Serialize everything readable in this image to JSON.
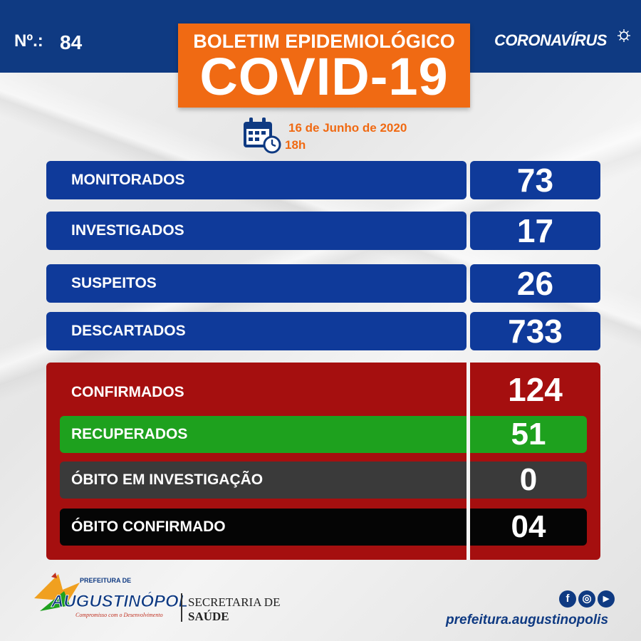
{
  "header": {
    "number_label": "Nº.:",
    "number_value": "84",
    "title_line1": "BOLETIM EPIDEMIOLÓGICO",
    "title_line2": "COVID-19",
    "brand": "CORONAVÍRUS",
    "date": "16 de Junho de 2020",
    "time": "18h"
  },
  "stats_blue": [
    {
      "label": "MONITORADOS",
      "value": "73"
    },
    {
      "label": "INVESTIGADOS",
      "value": "17"
    },
    {
      "label": "SUSPEITOS",
      "value": "26"
    },
    {
      "label": "DESCARTADOS",
      "value": "733"
    }
  ],
  "stats_red": {
    "confirmed_label": "CONFIRMADOS",
    "confirmed_value": "124",
    "rows": [
      {
        "label": "RECUPERADOS",
        "value": "51"
      },
      {
        "label": "ÓBITO EM INVESTIGAÇÃO",
        "value": "0"
      },
      {
        "label": "ÓBITO CONFIRMADO",
        "value": "04"
      }
    ]
  },
  "footer": {
    "logo_top": "PREFEITURA DE",
    "logo_name": "AUGUSTINÓPOLIS",
    "logo_slogan": "Compromisso com o Desenvolvimento",
    "secretaria_line1": "SECRETARIA DE",
    "secretaria_line2": "SAÚDE",
    "social": [
      "f",
      "◎",
      "▶"
    ],
    "website": "prefeitura.augustinopolis"
  },
  "colors": {
    "navy": "#0f3a82",
    "orange": "#f06a13",
    "red": "#a50f0f",
    "green": "#1ea11e",
    "dark_gray": "#3a3a3a",
    "black": "#050505"
  }
}
